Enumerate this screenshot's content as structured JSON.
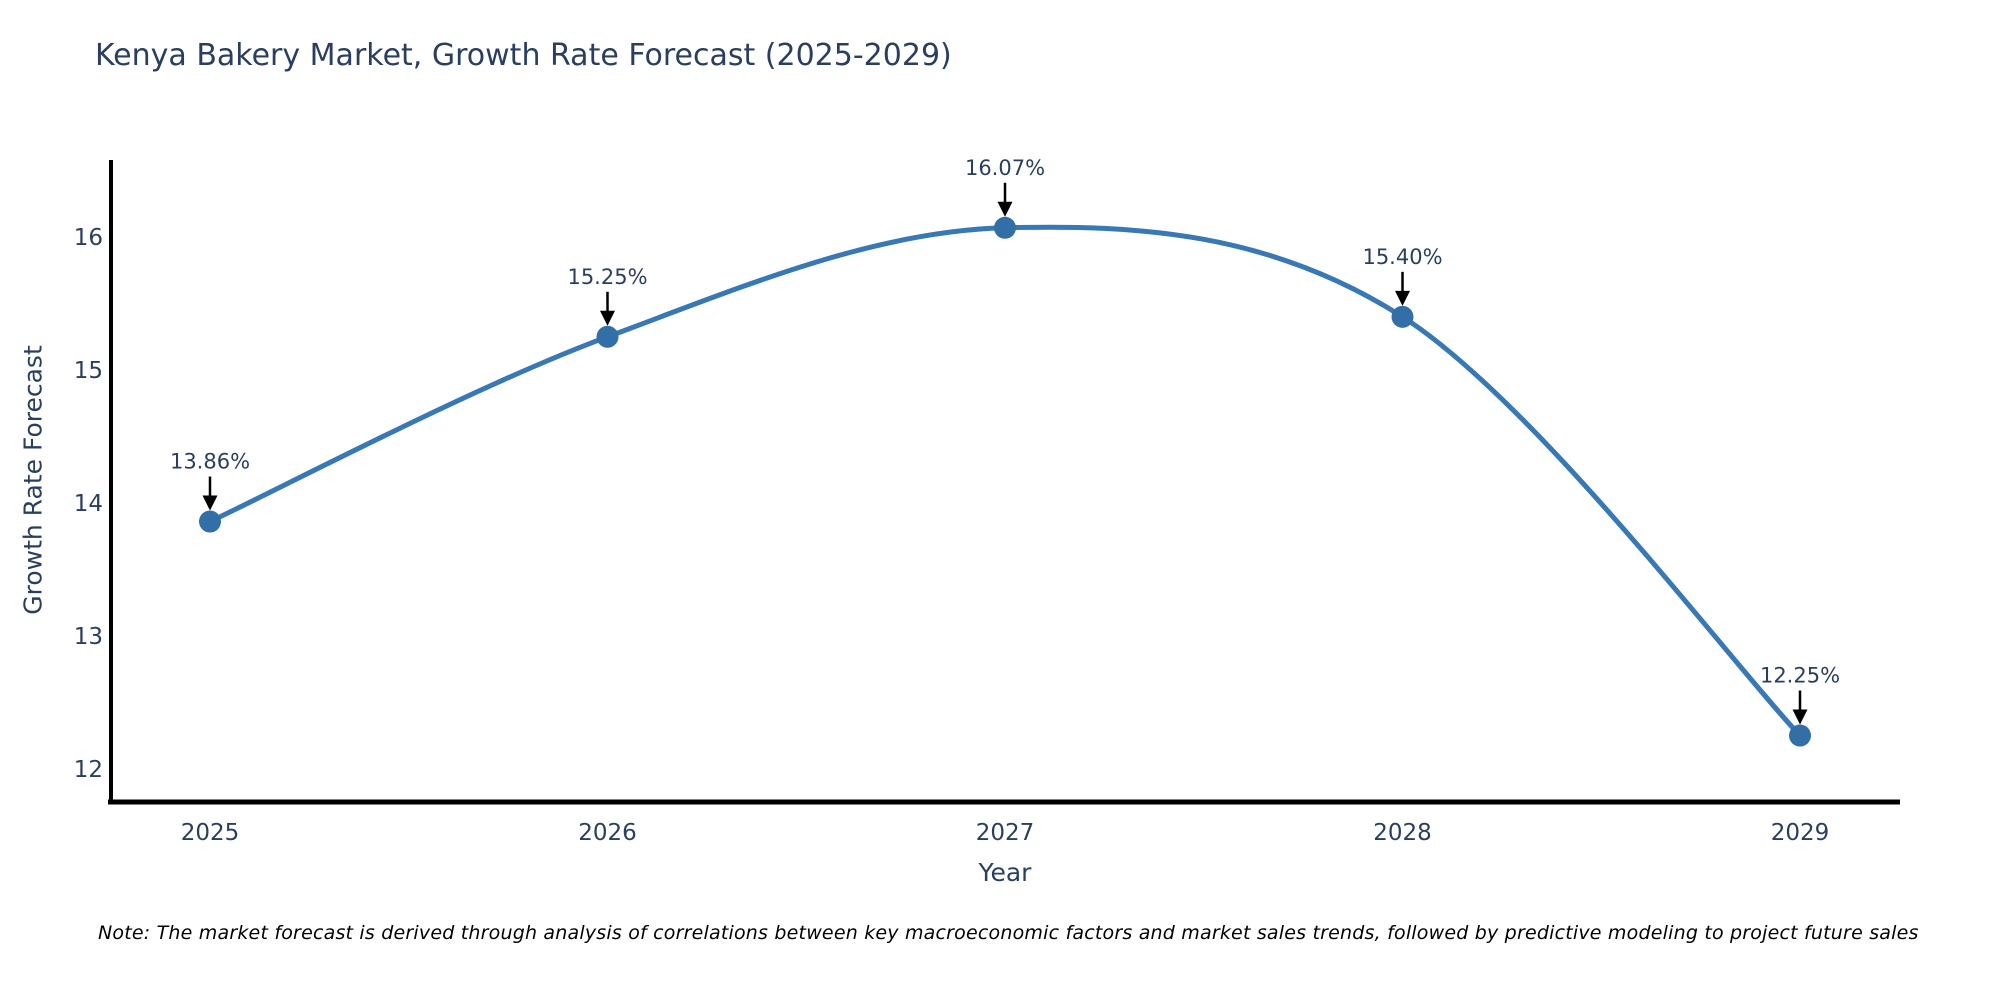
{
  "chart_data": {
    "type": "line",
    "title": "Kenya Bakery Market, Growth Rate Forecast (2025-2029)",
    "xlabel": "Year",
    "ylabel": "Growth Rate Forecast",
    "categories": [
      "2025",
      "2026",
      "2027",
      "2028",
      "2029"
    ],
    "series": [
      {
        "name": "Growth Rate Forecast",
        "values": [
          13.86,
          15.25,
          16.07,
          15.4,
          12.25
        ]
      }
    ],
    "point_labels": [
      "13.86%",
      "15.25%",
      "16.07%",
      "15.40%",
      "12.25%"
    ],
    "yticks": [
      12,
      13,
      14,
      15,
      16
    ],
    "ylim": [
      11.75,
      16.58
    ],
    "line_shape": "spline",
    "grid": false,
    "legend": "none",
    "colors": {
      "line": "#3878b4",
      "marker": "#336fa7",
      "axis": "#000000",
      "text": "#2a3f5f",
      "annotation_arrow": "#000000",
      "background": "#ffffff"
    }
  },
  "note": "Note: The market forecast is derived through analysis of correlations between key macroeconomic factors and market sales trends, followed by predictive modeling to project future sales"
}
